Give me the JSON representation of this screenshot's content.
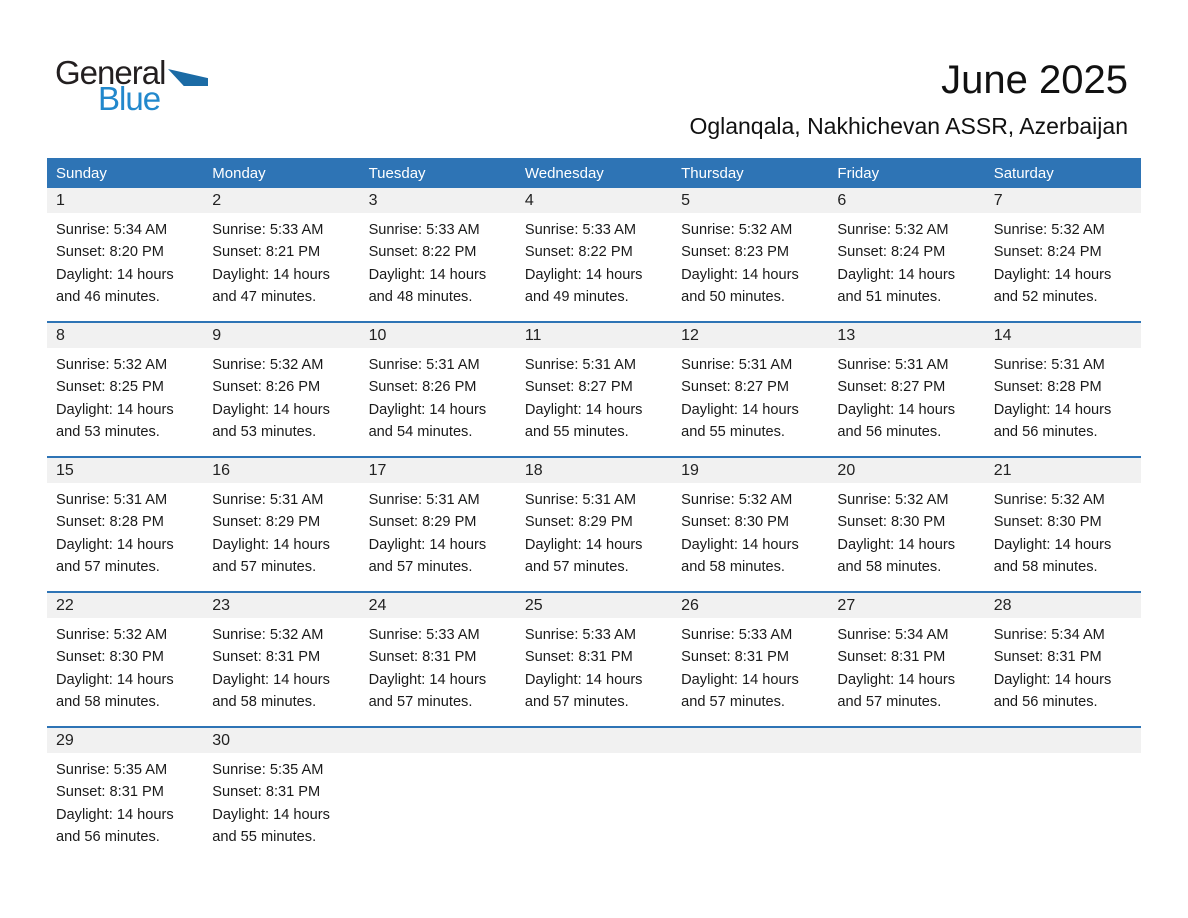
{
  "logo": {
    "line1": "General",
    "line2": "Blue"
  },
  "page_header": {
    "month_title": "June 2025",
    "location": "Oglanqala, Nakhichevan ASSR, Azerbaijan"
  },
  "colors": {
    "header_blue": "#2e74b5",
    "day_band_gray": "#f1f1f1",
    "logo_triangle": "#1b6ba5",
    "logo_blue_text": "#2288cc"
  },
  "calendar": {
    "weekdays": [
      "Sunday",
      "Monday",
      "Tuesday",
      "Wednesday",
      "Thursday",
      "Friday",
      "Saturday"
    ],
    "weeks": [
      [
        {
          "day": "1",
          "sunrise": "Sunrise: 5:34 AM",
          "sunset": "Sunset: 8:20 PM",
          "daylight_line1": "Daylight: 14 hours",
          "daylight_line2": "and 46 minutes."
        },
        {
          "day": "2",
          "sunrise": "Sunrise: 5:33 AM",
          "sunset": "Sunset: 8:21 PM",
          "daylight_line1": "Daylight: 14 hours",
          "daylight_line2": "and 47 minutes."
        },
        {
          "day": "3",
          "sunrise": "Sunrise: 5:33 AM",
          "sunset": "Sunset: 8:22 PM",
          "daylight_line1": "Daylight: 14 hours",
          "daylight_line2": "and 48 minutes."
        },
        {
          "day": "4",
          "sunrise": "Sunrise: 5:33 AM",
          "sunset": "Sunset: 8:22 PM",
          "daylight_line1": "Daylight: 14 hours",
          "daylight_line2": "and 49 minutes."
        },
        {
          "day": "5",
          "sunrise": "Sunrise: 5:32 AM",
          "sunset": "Sunset: 8:23 PM",
          "daylight_line1": "Daylight: 14 hours",
          "daylight_line2": "and 50 minutes."
        },
        {
          "day": "6",
          "sunrise": "Sunrise: 5:32 AM",
          "sunset": "Sunset: 8:24 PM",
          "daylight_line1": "Daylight: 14 hours",
          "daylight_line2": "and 51 minutes."
        },
        {
          "day": "7",
          "sunrise": "Sunrise: 5:32 AM",
          "sunset": "Sunset: 8:24 PM",
          "daylight_line1": "Daylight: 14 hours",
          "daylight_line2": "and 52 minutes."
        }
      ],
      [
        {
          "day": "8",
          "sunrise": "Sunrise: 5:32 AM",
          "sunset": "Sunset: 8:25 PM",
          "daylight_line1": "Daylight: 14 hours",
          "daylight_line2": "and 53 minutes."
        },
        {
          "day": "9",
          "sunrise": "Sunrise: 5:32 AM",
          "sunset": "Sunset: 8:26 PM",
          "daylight_line1": "Daylight: 14 hours",
          "daylight_line2": "and 53 minutes."
        },
        {
          "day": "10",
          "sunrise": "Sunrise: 5:31 AM",
          "sunset": "Sunset: 8:26 PM",
          "daylight_line1": "Daylight: 14 hours",
          "daylight_line2": "and 54 minutes."
        },
        {
          "day": "11",
          "sunrise": "Sunrise: 5:31 AM",
          "sunset": "Sunset: 8:27 PM",
          "daylight_line1": "Daylight: 14 hours",
          "daylight_line2": "and 55 minutes."
        },
        {
          "day": "12",
          "sunrise": "Sunrise: 5:31 AM",
          "sunset": "Sunset: 8:27 PM",
          "daylight_line1": "Daylight: 14 hours",
          "daylight_line2": "and 55 minutes."
        },
        {
          "day": "13",
          "sunrise": "Sunrise: 5:31 AM",
          "sunset": "Sunset: 8:27 PM",
          "daylight_line1": "Daylight: 14 hours",
          "daylight_line2": "and 56 minutes."
        },
        {
          "day": "14",
          "sunrise": "Sunrise: 5:31 AM",
          "sunset": "Sunset: 8:28 PM",
          "daylight_line1": "Daylight: 14 hours",
          "daylight_line2": "and 56 minutes."
        }
      ],
      [
        {
          "day": "15",
          "sunrise": "Sunrise: 5:31 AM",
          "sunset": "Sunset: 8:28 PM",
          "daylight_line1": "Daylight: 14 hours",
          "daylight_line2": "and 57 minutes."
        },
        {
          "day": "16",
          "sunrise": "Sunrise: 5:31 AM",
          "sunset": "Sunset: 8:29 PM",
          "daylight_line1": "Daylight: 14 hours",
          "daylight_line2": "and 57 minutes."
        },
        {
          "day": "17",
          "sunrise": "Sunrise: 5:31 AM",
          "sunset": "Sunset: 8:29 PM",
          "daylight_line1": "Daylight: 14 hours",
          "daylight_line2": "and 57 minutes."
        },
        {
          "day": "18",
          "sunrise": "Sunrise: 5:31 AM",
          "sunset": "Sunset: 8:29 PM",
          "daylight_line1": "Daylight: 14 hours",
          "daylight_line2": "and 57 minutes."
        },
        {
          "day": "19",
          "sunrise": "Sunrise: 5:32 AM",
          "sunset": "Sunset: 8:30 PM",
          "daylight_line1": "Daylight: 14 hours",
          "daylight_line2": "and 58 minutes."
        },
        {
          "day": "20",
          "sunrise": "Sunrise: 5:32 AM",
          "sunset": "Sunset: 8:30 PM",
          "daylight_line1": "Daylight: 14 hours",
          "daylight_line2": "and 58 minutes."
        },
        {
          "day": "21",
          "sunrise": "Sunrise: 5:32 AM",
          "sunset": "Sunset: 8:30 PM",
          "daylight_line1": "Daylight: 14 hours",
          "daylight_line2": "and 58 minutes."
        }
      ],
      [
        {
          "day": "22",
          "sunrise": "Sunrise: 5:32 AM",
          "sunset": "Sunset: 8:30 PM",
          "daylight_line1": "Daylight: 14 hours",
          "daylight_line2": "and 58 minutes."
        },
        {
          "day": "23",
          "sunrise": "Sunrise: 5:32 AM",
          "sunset": "Sunset: 8:31 PM",
          "daylight_line1": "Daylight: 14 hours",
          "daylight_line2": "and 58 minutes."
        },
        {
          "day": "24",
          "sunrise": "Sunrise: 5:33 AM",
          "sunset": "Sunset: 8:31 PM",
          "daylight_line1": "Daylight: 14 hours",
          "daylight_line2": "and 57 minutes."
        },
        {
          "day": "25",
          "sunrise": "Sunrise: 5:33 AM",
          "sunset": "Sunset: 8:31 PM",
          "daylight_line1": "Daylight: 14 hours",
          "daylight_line2": "and 57 minutes."
        },
        {
          "day": "26",
          "sunrise": "Sunrise: 5:33 AM",
          "sunset": "Sunset: 8:31 PM",
          "daylight_line1": "Daylight: 14 hours",
          "daylight_line2": "and 57 minutes."
        },
        {
          "day": "27",
          "sunrise": "Sunrise: 5:34 AM",
          "sunset": "Sunset: 8:31 PM",
          "daylight_line1": "Daylight: 14 hours",
          "daylight_line2": "and 57 minutes."
        },
        {
          "day": "28",
          "sunrise": "Sunrise: 5:34 AM",
          "sunset": "Sunset: 8:31 PM",
          "daylight_line1": "Daylight: 14 hours",
          "daylight_line2": "and 56 minutes."
        }
      ],
      [
        {
          "day": "29",
          "sunrise": "Sunrise: 5:35 AM",
          "sunset": "Sunset: 8:31 PM",
          "daylight_line1": "Daylight: 14 hours",
          "daylight_line2": "and 56 minutes."
        },
        {
          "day": "30",
          "sunrise": "Sunrise: 5:35 AM",
          "sunset": "Sunset: 8:31 PM",
          "daylight_line1": "Daylight: 14 hours",
          "daylight_line2": "and 55 minutes."
        },
        null,
        null,
        null,
        null,
        null
      ]
    ]
  }
}
